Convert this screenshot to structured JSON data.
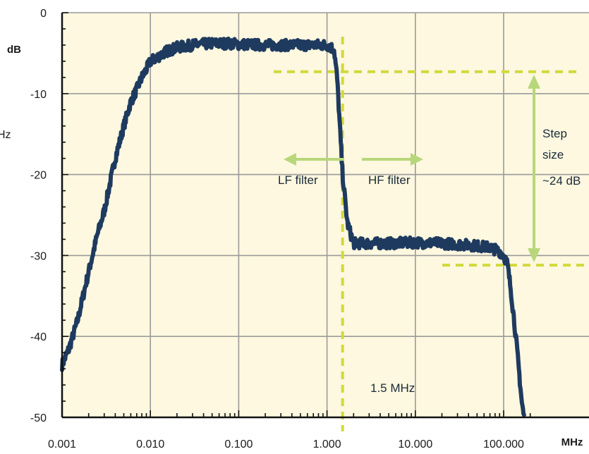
{
  "chart_data": {
    "type": "line",
    "title": "",
    "xlabel": "MHz",
    "ylabel": "dB",
    "x_scale": "log",
    "xlim": [
      0.001,
      200
    ],
    "ylim": [
      -50,
      0
    ],
    "grid": true,
    "x_ticks": [
      0.001,
      0.01,
      0.1,
      1,
      10,
      100
    ],
    "x_tick_labels": [
      "0.001",
      "0.010",
      "0.100",
      "1.000",
      "10.000",
      "100.000"
    ],
    "y_ticks": [
      0,
      -10,
      -20,
      -30,
      -40,
      -50
    ],
    "y_tick_labels": [
      "0",
      "-10",
      "-20",
      "-30",
      "-40",
      "-50"
    ],
    "left_edge_text": "Hz",
    "colors": {
      "plot_bg": "#fdf8df",
      "curve": "#1f3a5f",
      "grid": "#9a9a9a",
      "dashed": "#d2d93a",
      "arrow": "#b8d77a"
    },
    "series": [
      {
        "name": "",
        "x": [
          0.001,
          0.0012,
          0.0015,
          0.002,
          0.0025,
          0.003,
          0.004,
          0.005,
          0.006,
          0.007,
          0.008,
          0.009,
          0.01,
          0.012,
          0.015,
          0.02,
          0.03,
          0.05,
          0.08,
          0.1,
          0.2,
          0.4,
          0.7,
          1.0,
          1.2,
          1.3,
          1.5,
          1.7,
          2.0,
          3,
          5,
          10,
          20,
          40,
          70,
          90,
          100,
          110,
          120,
          130,
          140,
          150,
          160,
          170
        ],
        "y": [
          -43.5,
          -41.5,
          -38,
          -32,
          -27.5,
          -24.5,
          -18,
          -14,
          -11,
          -9.5,
          -8,
          -7,
          -6,
          -5.5,
          -4.8,
          -4.3,
          -4.0,
          -3.8,
          -3.8,
          -3.9,
          -4.0,
          -4.0,
          -4.0,
          -4.0,
          -4.5,
          -8,
          -20,
          -26,
          -28.5,
          -28.5,
          -28.5,
          -28.4,
          -28.5,
          -28.7,
          -29.0,
          -29.5,
          -30,
          -31,
          -34,
          -37.5,
          -41,
          -44.5,
          -48,
          -50
        ]
      }
    ],
    "annotations": {
      "cutoff_label": "1.5 MHz",
      "cutoff_x": 1.5,
      "lf_label": "LF filter",
      "hf_label": "HF filter",
      "step_lines": [
        "Step",
        "size",
        "~24 dB"
      ],
      "step_upper_db": -7.3,
      "step_lower_db": -31.2
    }
  }
}
